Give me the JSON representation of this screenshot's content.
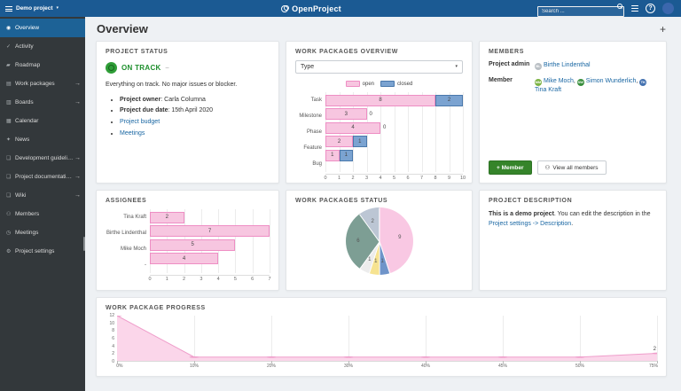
{
  "header": {
    "project_selector": {
      "label": "Demo project",
      "caret": "▾"
    },
    "logo_text": "OpenProject",
    "search_placeholder": "Search ...",
    "help_label": "?"
  },
  "sidebar": {
    "items": [
      {
        "name": "overview",
        "label": "Overview",
        "glyph": "◉",
        "selected": true,
        "arrow": false
      },
      {
        "name": "activity",
        "label": "Activity",
        "glyph": "✓",
        "selected": false,
        "arrow": false
      },
      {
        "name": "roadmap",
        "label": "Roadmap",
        "glyph": "▰",
        "selected": false,
        "arrow": false
      },
      {
        "name": "work-packages",
        "label": "Work packages",
        "glyph": "▤",
        "selected": false,
        "arrow": true
      },
      {
        "name": "boards",
        "label": "Boards",
        "glyph": "▥",
        "selected": false,
        "arrow": true
      },
      {
        "name": "calendar",
        "label": "Calendar",
        "glyph": "▦",
        "selected": false,
        "arrow": false
      },
      {
        "name": "news",
        "label": "News",
        "glyph": "✦",
        "selected": false,
        "arrow": false
      },
      {
        "name": "development-guidelines",
        "label": "Development guideli…",
        "glyph": "❏",
        "selected": false,
        "arrow": true
      },
      {
        "name": "project-documentation",
        "label": "Project documentati…",
        "glyph": "❏",
        "selected": false,
        "arrow": true
      },
      {
        "name": "wiki",
        "label": "Wiki",
        "glyph": "❏",
        "selected": false,
        "arrow": true
      },
      {
        "name": "members",
        "label": "Members",
        "glyph": "⚇",
        "selected": false,
        "arrow": false
      },
      {
        "name": "meetings",
        "label": "Meetings",
        "glyph": "◷",
        "selected": false,
        "arrow": false
      },
      {
        "name": "project-settings",
        "label": "Project settings",
        "glyph": "⚙",
        "selected": false,
        "arrow": false
      }
    ]
  },
  "page": {
    "title": "Overview",
    "add_widget": "+"
  },
  "project_status": {
    "title": "PROJECT STATUS",
    "badge": "ON TRACK",
    "badge_caret": "–",
    "summary": "Everything on track. No major issues or blocker.",
    "bullets": [
      {
        "bold": "Project owner",
        "text": ": Carla Columna",
        "link": ""
      },
      {
        "bold": "Project due date",
        "text": ": 15th April 2020",
        "link": ""
      },
      {
        "bold": "",
        "text": "",
        "link": "Project budget"
      },
      {
        "bold": "",
        "text": "",
        "link": "Meetings"
      }
    ]
  },
  "wp_overview_card": {
    "title": "WORK PACKAGES OVERVIEW",
    "filter_value": "Type",
    "filter_caret": "▾"
  },
  "members_card": {
    "title": "MEMBERS",
    "rows": [
      {
        "role": "Project admin",
        "people": [
          {
            "name": "Birthe Lindenthal",
            "initials": "BL",
            "color": "#b9bfc4"
          }
        ]
      },
      {
        "role": "Member",
        "people": [
          {
            "name": "Mike Moch",
            "initials": "MM",
            "color": "#7cb342"
          },
          {
            "name": "Simon Wunderlich",
            "initials": "SW",
            "color": "#388e3c"
          },
          {
            "name": "Tina Kraft",
            "initials": "TK",
            "color": "#4472b0"
          }
        ]
      }
    ],
    "add_member_label": "+ Member",
    "view_all_label": "View all members",
    "view_all_icon": "⚇"
  },
  "assignees_card": {
    "title": "ASSIGNEES"
  },
  "wp_status_card": {
    "title": "WORK PACKAGES STATUS"
  },
  "description_card": {
    "title": "PROJECT DESCRIPTION",
    "bold": "This is a demo project",
    "middle": ". You can edit the description in the ",
    "link": "Project settings -> Description",
    "suffix": "."
  },
  "progress_card": {
    "title": "WORK PACKAGE PROGRESS"
  },
  "colors": {
    "header_blue": "#1b5a93",
    "sidebar_selected_blue": "#1d6296",
    "link_blue": "#1a67a3",
    "status_green": "#1d8f2c",
    "button_green": "#35842a",
    "open_pink": "#f7c6e0",
    "open_pink_border": "#ee8ec4",
    "closed_blue": "#7ba3d1",
    "closed_blue_border": "#4a78ab"
  },
  "chart_data": [
    {
      "name": "work_packages_overview",
      "type": "bar",
      "orientation": "horizontal",
      "stacked": true,
      "categories": [
        "Task",
        "Milestone",
        "Phase",
        "Feature",
        "Bug"
      ],
      "series": [
        {
          "name": "open",
          "color": "#f7c6e0",
          "border": "#ee8ec4",
          "values": [
            8,
            3,
            4,
            2,
            1
          ]
        },
        {
          "name": "closed",
          "color": "#7ba3d1",
          "border": "#4a78ab",
          "values": [
            2,
            0,
            0,
            1,
            1
          ]
        }
      ],
      "xlim": [
        0,
        10
      ],
      "xticks": [
        0,
        1,
        2,
        3,
        4,
        5,
        6,
        7,
        8,
        9,
        10
      ],
      "legend_position": "top",
      "grid": true
    },
    {
      "name": "assignees",
      "type": "bar",
      "orientation": "horizontal",
      "categories": [
        "Tina Kraft",
        "Birthe Lindenthal",
        "Mike Moch",
        "-"
      ],
      "values": [
        2,
        7,
        5,
        4
      ],
      "color": "#f7c6e0",
      "border": "#ee8ec4",
      "xlim": [
        0,
        7
      ],
      "xticks": [
        0,
        1,
        2,
        3,
        4,
        5,
        6,
        7
      ],
      "grid": true
    },
    {
      "name": "work_packages_status",
      "type": "pie",
      "slices": [
        {
          "label": "9",
          "value": 9,
          "color": "#f9c8e3"
        },
        {
          "label": "1",
          "value": 1,
          "color": "#6f94c9"
        },
        {
          "label": "1",
          "value": 1,
          "color": "#f6e391"
        },
        {
          "label": "1",
          "value": 1,
          "color": "#ececec"
        },
        {
          "label": "6",
          "value": 6,
          "color": "#7d9e94"
        },
        {
          "label": "2",
          "value": 2,
          "color": "#bcc6d4"
        }
      ]
    },
    {
      "name": "work_package_progress",
      "type": "area",
      "x": [
        "0%",
        "10%",
        "20%",
        "30%",
        "40%",
        "45%",
        "50%",
        "75%"
      ],
      "values": [
        12,
        1,
        1,
        1,
        1,
        1,
        1,
        2
      ],
      "ylim": [
        0,
        12
      ],
      "yticks": [
        0,
        2,
        4,
        6,
        8,
        10,
        12
      ],
      "line_color": "#ef9ecb",
      "fill_color": "#fbd6ea",
      "end_label": "2",
      "grid": true
    }
  ]
}
